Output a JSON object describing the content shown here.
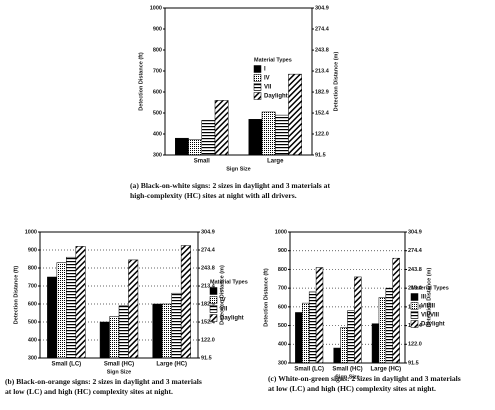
{
  "chart_data": [
    {
      "type": "bar",
      "categories": [
        "Small",
        "Large"
      ],
      "series": [
        {
          "name": "I",
          "pattern": "solid",
          "values": [
            380,
            470
          ]
        },
        {
          "name": "IV",
          "pattern": "dots",
          "values": [
            375,
            505
          ]
        },
        {
          "name": "VII",
          "pattern": "horizontal",
          "values": [
            465,
            490
          ]
        },
        {
          "name": "Daylight",
          "pattern": "diagonal",
          "values": [
            560,
            685
          ]
        }
      ],
      "ylim": [
        300,
        1000
      ],
      "yticks": [
        300,
        400,
        500,
        600,
        700,
        800,
        900,
        1000
      ],
      "y2lim": [
        91.5,
        304.9
      ],
      "y2ticks": [
        91.5,
        {
          "value": 122,
          "label": "122.0"
        },
        152.4,
        182.9,
        213.4,
        243.8,
        274.4,
        304.9
      ],
      "y_label": "Detection Distance (ft)",
      "y2_label": "Detection Distance (m)",
      "x_label": "Sign Size",
      "legend_title": "Material Types",
      "grid": false,
      "caption": [
        "(a)  Black-on-white signs:  2 sizes in daylight and 3 materials at",
        "high-complexity (HC) sites at night with all drivers."
      ]
    },
    {
      "type": "bar",
      "categories": [
        "Small (LC)",
        "Small (HC)",
        "Large (HC)"
      ],
      "series": [
        {
          "name": "I",
          "pattern": "solid",
          "values": [
            750,
            500,
            600
          ]
        },
        {
          "name": "IV",
          "pattern": "dots",
          "values": [
            830,
            530,
            600
          ]
        },
        {
          "name": "VII",
          "pattern": "horizontal",
          "values": [
            860,
            590,
            660
          ]
        },
        {
          "name": "Daylight",
          "pattern": "diagonal",
          "values": [
            920,
            845,
            925
          ]
        }
      ],
      "ylim": [
        300,
        1000
      ],
      "yticks": [
        300,
        400,
        500,
        600,
        700,
        800,
        900,
        1000
      ],
      "y2lim": [
        91.5,
        304.9
      ],
      "y2ticks": [
        91.5,
        {
          "value": 122,
          "label": "122.0"
        },
        152.4,
        182.9,
        213.4,
        243.8,
        274.4,
        304.9
      ],
      "y_label": "Detection Distance (ft)",
      "y2_label": "Detection Distance (m)",
      "x_label": "Sign Size",
      "legend_title": "Material Types",
      "grid": true,
      "caption": [
        "(b)  Black-on-orange signs:  2 sizes in daylight and 3 materials",
        "at low (LC) and high (HC) complexity sites at night."
      ]
    },
    {
      "type": "bar",
      "categories": [
        "Small (LC)",
        "Small (HC)",
        "Large (HC)"
      ],
      "series": [
        {
          "name": "III",
          "pattern": "solid",
          "values": [
            570,
            380,
            510
          ]
        },
        {
          "name": "VII/III",
          "pattern": "dots",
          "values": [
            620,
            490,
            650
          ]
        },
        {
          "name": "VII/VIII",
          "pattern": "horizontal",
          "values": [
            680,
            580,
            700
          ]
        },
        {
          "name": "Daylight",
          "pattern": "diagonal",
          "values": [
            810,
            760,
            860
          ]
        }
      ],
      "ylim": [
        300,
        1000
      ],
      "yticks": [
        300,
        400,
        500,
        600,
        700,
        800,
        900,
        1000
      ],
      "y2lim": [
        91.5,
        304.9
      ],
      "y2ticks": [
        91.5,
        {
          "value": 122,
          "label": "122.0"
        },
        152.4,
        182.9,
        213.4,
        243.8,
        274.4,
        304.9
      ],
      "y_label": "Detection Distance (ft)",
      "y2_label": "Detection Distance (m)",
      "x_label": "Sign Size",
      "legend_title": "Material Types",
      "grid": true,
      "caption": [
        "(c)  White-on-green signs:  2 sizes in daylight and 3 materials",
        "at low (LC) and high (HC) complexity sites at night."
      ]
    }
  ]
}
